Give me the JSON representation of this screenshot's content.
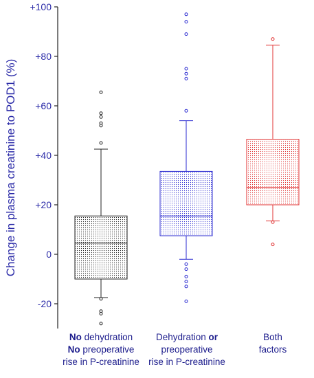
{
  "chart_data": {
    "type": "box",
    "ylabel": "Change in plasma creatinine to POD1 (%)",
    "ylim": [
      -30,
      100
    ],
    "y_ticks": [
      -20,
      0,
      20,
      40,
      60,
      80,
      100
    ],
    "y_tick_labels": [
      "-20",
      "0",
      "+20",
      "+40",
      "+60",
      "+80",
      "+100"
    ],
    "categories": [
      {
        "line1_bold": "No",
        "line1": " dehydration",
        "line2_bold": "No",
        "line2": " preoperative",
        "line3": "rise in P-creatinine"
      },
      {
        "line1": "Dehydration ",
        "line1_bold": "or",
        "line2": "preoperative",
        "line3": "rise in P-creatinine"
      },
      {
        "line1": "Both",
        "line2": "factors"
      }
    ],
    "series": [
      {
        "color": "#222222",
        "q1": -10,
        "median": 4.5,
        "q3": 15.5,
        "whisker_low": -17.5,
        "whisker_high": 42.5,
        "outliers": [
          65.5,
          57,
          55.5,
          53,
          52,
          45,
          -18,
          -23,
          -24,
          -28
        ]
      },
      {
        "color": "#2b2bd0",
        "q1": 7.5,
        "median": 15.5,
        "q3": 33.5,
        "whisker_low": -2,
        "whisker_high": 54,
        "outliers": [
          97,
          94,
          89,
          75,
          73,
          71,
          58,
          -4,
          -6,
          -9,
          -11,
          -13,
          -19
        ]
      },
      {
        "color": "#e03030",
        "q1": 20,
        "median": 27,
        "q3": 46.5,
        "whisker_low": 13.5,
        "whisker_high": 84.5,
        "outliers": [
          87,
          13,
          4
        ]
      }
    ]
  }
}
